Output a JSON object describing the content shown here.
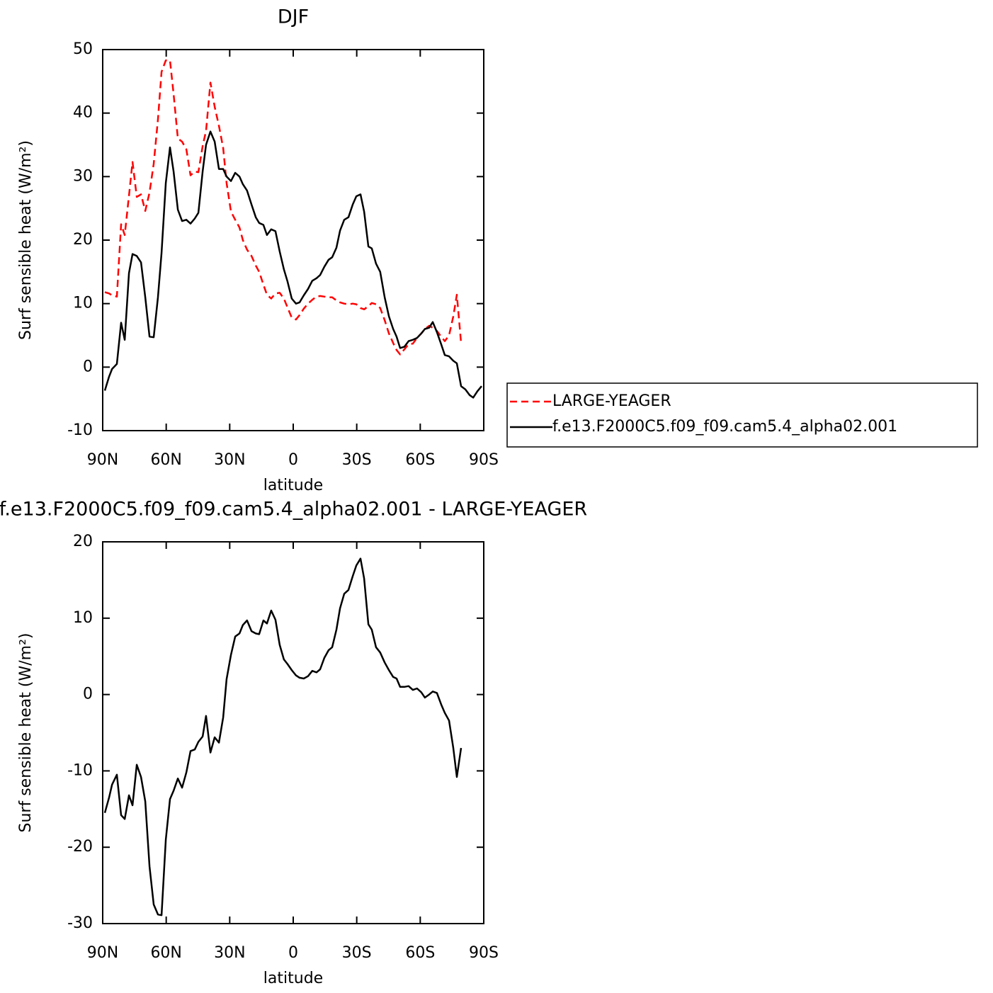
{
  "chart_data": [
    {
      "type": "line",
      "title": "DJF",
      "xlabel": "latitude",
      "ylabel": "Surf sensible heat (W/m²)",
      "x": [
        89,
        87,
        85.6,
        83.3,
        81.3,
        79.6,
        77.6,
        75.9,
        73.9,
        71.9,
        69.9,
        67.9,
        65.9,
        63.9,
        62.2,
        60.2,
        58.2,
        56.5,
        54.5,
        52.5,
        50.5,
        48.5,
        46.5,
        44.8,
        42.8,
        41.2,
        39.1,
        37.1,
        35.1,
        33.1,
        31.5,
        29.4,
        27.4,
        25.4,
        23.8,
        21.8,
        19.7,
        17.7,
        16.1,
        14.1,
        12.4,
        10.4,
        8.4,
        6.4,
        4.4,
        2.7,
        0.7,
        -1.3,
        -3,
        -5,
        -7,
        -9,
        -11,
        -12.7,
        -14.7,
        -16.7,
        -18.4,
        -20.4,
        -22.1,
        -24.1,
        -26.1,
        -28.1,
        -29.8,
        -31.8,
        -33.5,
        -35.5,
        -37.1,
        -39.1,
        -41.1,
        -43.2,
        -45.2,
        -47.2,
        -48.8,
        -50.5,
        -52.5,
        -54.5,
        -56.5,
        -58.5,
        -60.5,
        -62.2,
        -64.2,
        -65.9,
        -67.9,
        -69.9,
        -71.6,
        -73.6,
        -75.6,
        -77.3,
        -79.3,
        -81.3,
        -83.3,
        -85,
        -87,
        -89
      ],
      "series": [
        {
          "name": "LARGE-YEAGER",
          "color": "#ff0000",
          "dashed": true,
          "values": [
            11.8,
            11.6,
            11.3,
            11.1,
            22.5,
            20.8,
            27,
            32.3,
            26.8,
            27.2,
            24.6,
            27.5,
            32,
            39,
            46.5,
            48.3,
            48.3,
            43,
            36,
            35.5,
            34.3,
            30.2,
            30.8,
            30.7,
            34.8,
            37.2,
            44.8,
            41,
            38,
            34.5,
            29,
            24.5,
            23.2,
            22,
            20,
            18.5,
            17.5,
            16,
            15,
            13,
            11.4,
            10.8,
            11.6,
            11.7,
            10.8,
            9.4,
            7.8,
            7.5,
            8.2,
            9.2,
            10,
            10.6,
            11.1,
            11.2,
            11.1,
            11,
            11,
            10.5,
            10.2,
            10,
            9.9,
            10,
            9.9,
            9.3,
            9.1,
            9.6,
            10.1,
            9.9,
            9.3,
            7.4,
            5.3,
            3.8,
            2.7,
            2,
            2.8,
            3.6,
            3.7,
            4.6,
            5.3,
            6,
            6.5,
            6.2,
            5.7,
            4.8,
            4.1,
            5,
            8,
            11.4,
            3.8,
            null,
            null,
            null,
            null,
            null
          ]
        },
        {
          "name": "f.e13.F2000C5.f09_f09.cam5.4_alpha02.001",
          "color": "#000000",
          "dashed": false,
          "values": [
            -3.7,
            -1.5,
            -0.3,
            0.5,
            7,
            4.3,
            14.8,
            17.8,
            17.5,
            16.5,
            11,
            4.8,
            4.7,
            11,
            18,
            29,
            34.6,
            30.8,
            24.8,
            23,
            23.2,
            22.6,
            23.4,
            24.3,
            30.8,
            35,
            37.1,
            35.5,
            31.2,
            31.2,
            30,
            29.3,
            30.6,
            30,
            28.8,
            27.8,
            25.6,
            23.6,
            22.7,
            22.4,
            20.8,
            21.7,
            21.4,
            18.2,
            15.4,
            13.5,
            10.8,
            10,
            10.2,
            11.3,
            12.3,
            13.6,
            14,
            14.5,
            15.8,
            16.9,
            17.3,
            18.8,
            21.5,
            23.2,
            23.6,
            25.6,
            26.9,
            27.2,
            24.5,
            19,
            18.7,
            16.3,
            15,
            11,
            8,
            6,
            4.8,
            3,
            3.2,
            4.1,
            4.3,
            4.6,
            5.3,
            6,
            6.2,
            7.1,
            5.5,
            3.6,
            1.9,
            1.7,
            1,
            0.6,
            -3,
            -3.5,
            -4.4,
            -4.8,
            -3.8,
            -3
          ]
        }
      ],
      "xlim": [
        90,
        -90
      ],
      "xticks": [
        {
          "value": 90,
          "label": "90N"
        },
        {
          "value": 60,
          "label": "60N"
        },
        {
          "value": 30,
          "label": "30N"
        },
        0,
        {
          "value": -30,
          "label": "30S"
        },
        {
          "value": -60,
          "label": "60S"
        },
        {
          "value": -90,
          "label": "90S"
        }
      ],
      "ylim": [
        -10,
        50
      ],
      "yticks": [
        -10,
        0,
        10,
        20,
        30,
        40,
        50
      ],
      "legend": "right"
    },
    {
      "type": "line",
      "title": "f.e13.F2000C5.f09_f09.cam5.4_alpha02.001 - LARGE-YEAGER",
      "xlabel": "latitude",
      "ylabel": "Surf sensible heat (W/m²)",
      "x": [
        89,
        87,
        85.6,
        83.3,
        81.3,
        79.6,
        77.6,
        75.9,
        73.9,
        71.9,
        69.9,
        67.9,
        65.9,
        63.9,
        62.2,
        60.2,
        58.2,
        56.5,
        54.5,
        52.5,
        50.5,
        48.5,
        46.5,
        44.8,
        42.8,
        41.2,
        39.1,
        37.1,
        35.1,
        33.1,
        31.5,
        29.4,
        27.4,
        25.4,
        23.8,
        21.8,
        19.7,
        17.7,
        16.1,
        14.1,
        12.4,
        10.4,
        8.4,
        6.4,
        4.4,
        2.7,
        0.7,
        -1.3,
        -3,
        -5,
        -7,
        -9,
        -11,
        -12.7,
        -14.7,
        -16.7,
        -18.4,
        -20.4,
        -22.1,
        -24.1,
        -26.1,
        -28.1,
        -29.8,
        -31.8,
        -33.5,
        -35.5,
        -37.1,
        -39.1,
        -41.1,
        -43.2,
        -45.2,
        -47.2,
        -48.8,
        -50.5,
        -52.5,
        -54.5,
        -56.5,
        -58.5,
        -60.5,
        -62.2,
        -64.2,
        -65.9,
        -67.9,
        -69.9,
        -71.6,
        -73.6,
        -75.6,
        -77.3,
        -79.3
      ],
      "values": [
        -15.5,
        -13.5,
        -11.8,
        -10.5,
        -15.8,
        -16.3,
        -13.2,
        -14.5,
        -9.2,
        -10.8,
        -14,
        -22.5,
        -27.5,
        -28.8,
        -28.9,
        -19,
        -13.7,
        -12.6,
        -11,
        -12.2,
        -10.2,
        -7.4,
        -7.2,
        -6.2,
        -5.5,
        -2.8,
        -7.6,
        -5.6,
        -6.3,
        -3,
        2,
        5.2,
        7.6,
        8,
        9.1,
        9.7,
        8.3,
        8,
        7.9,
        9.7,
        9.3,
        11,
        9.8,
        6.5,
        4.6,
        4,
        3.2,
        2.5,
        2.2,
        2.1,
        2.4,
        3.1,
        2.9,
        3.3,
        4.8,
        5.8,
        6.2,
        8.5,
        11.3,
        13.2,
        13.7,
        15.5,
        16.9,
        17.8,
        15.2,
        9.2,
        8.5,
        6.2,
        5.5,
        4.2,
        3.2,
        2.3,
        2.1,
        1,
        1,
        1.1,
        0.6,
        0.8,
        0.3,
        -0.4,
        0,
        0.4,
        0.2,
        -1.3,
        -2.4,
        -3.4,
        -7,
        -10.8,
        -7
      ],
      "color": "#000000",
      "xlim": [
        90,
        -90
      ],
      "xticks": [
        {
          "value": 90,
          "label": "90N"
        },
        {
          "value": 60,
          "label": "60N"
        },
        {
          "value": 30,
          "label": "30N"
        },
        0,
        {
          "value": -30,
          "label": "30S"
        },
        {
          "value": -60,
          "label": "60S"
        },
        {
          "value": -90,
          "label": "90S"
        }
      ],
      "ylim": [
        -30,
        20
      ],
      "yticks": [
        -30,
        -20,
        -10,
        0,
        10,
        20
      ]
    }
  ]
}
